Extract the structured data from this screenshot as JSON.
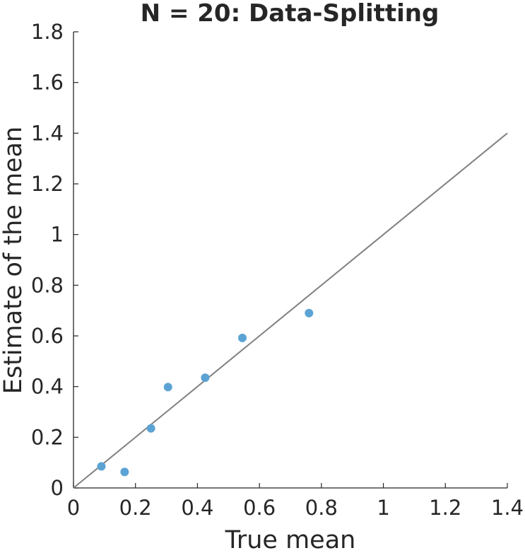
{
  "chart_data": {
    "type": "scatter",
    "title": "N = 20: Data-Splitting",
    "xlabel": "True mean",
    "ylabel": "Estimate of the mean",
    "xlim": [
      0,
      1.4
    ],
    "ylim": [
      0,
      1.8
    ],
    "xticks": [
      "0",
      "0.2",
      "0.4",
      "0.6",
      "0.8",
      "1",
      "1.2",
      "1.4"
    ],
    "yticks": [
      "0",
      "0.2",
      "0.4",
      "0.6",
      "0.8",
      "1",
      "1.2",
      "1.4",
      "1.6",
      "1.8"
    ],
    "grid": false,
    "reference_line": {
      "type": "identity",
      "from": [
        0,
        0
      ],
      "to": [
        1.4,
        1.4
      ],
      "color": "#808080"
    },
    "series": [
      {
        "color": "#5ba3d4",
        "points": [
          {
            "x": 0.09,
            "y": 0.085
          },
          {
            "x": 0.165,
            "y": 0.063
          },
          {
            "x": 0.25,
            "y": 0.235
          },
          {
            "x": 0.305,
            "y": 0.398
          },
          {
            "x": 0.425,
            "y": 0.435
          },
          {
            "x": 0.545,
            "y": 0.592
          },
          {
            "x": 0.76,
            "y": 0.69
          }
        ]
      }
    ]
  }
}
